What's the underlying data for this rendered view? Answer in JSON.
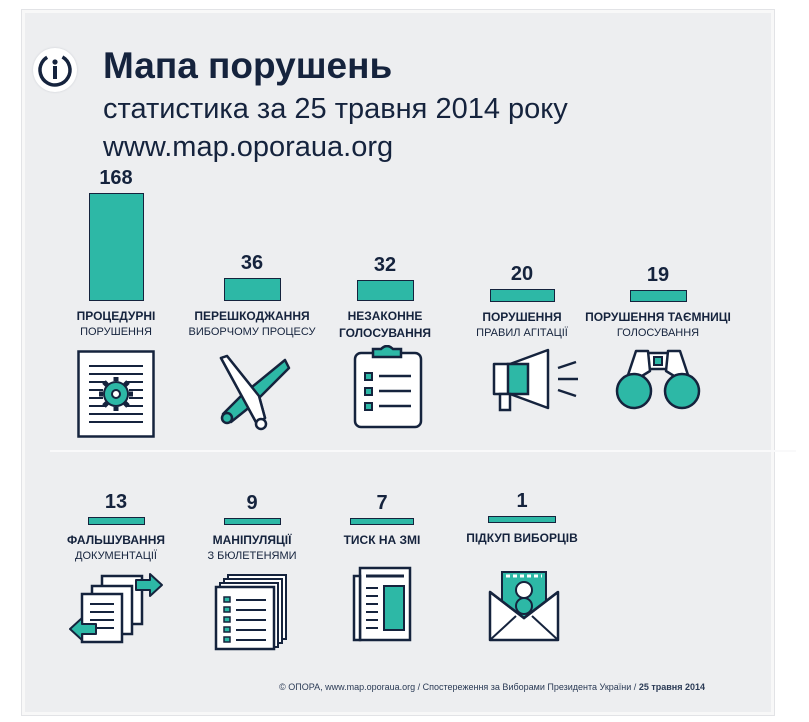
{
  "header": {
    "title": "Мапа порушень",
    "subtitle": "статистика за 25 травня 2014 року",
    "site": "www.map.oporaua.org"
  },
  "colors": {
    "accent": "#2db8a6",
    "dark": "#15233d",
    "background": "#edeef0"
  },
  "chart_data": {
    "type": "bar",
    "categories": [
      "ПРОЦЕДУРНІ ПОРУШЕННЯ",
      "ПЕРЕШКОДЖАННЯ ВИБОРЧОМУ ПРОЦЕСУ",
      "НЕЗАКОННЕ ГОЛОСУВАННЯ",
      "ПОРУШЕННЯ ПРАВИЛ АГІТАЦІЇ",
      "ПОРУШЕННЯ ТАЄМНИЦІ ГОЛОСУВАННЯ",
      "ФАЛЬШУВАННЯ ДОКУМЕНТАЦІЇ",
      "МАНІПУЛЯЦІЇ З БЮЛЕТЕНЯМИ",
      "ТИСК НА ЗМІ",
      "ПІДКУП ВИБОРЦІВ"
    ],
    "values": [
      168,
      36,
      32,
      20,
      19,
      13,
      9,
      7,
      1
    ],
    "labels": [
      {
        "line1": "ПРОЦЕДУРНІ",
        "line2": "ПОРУШЕННЯ"
      },
      {
        "line1": "ПЕРЕШКОДЖАННЯ",
        "line2": "ВИБОРЧОМУ ПРОЦЕСУ"
      },
      {
        "line1": "НЕЗАКОННЕ",
        "line2": "ГОЛОСУВАННЯ"
      },
      {
        "line1": "ПОРУШЕННЯ",
        "line2": "ПРАВИЛ АГІТАЦІЇ"
      },
      {
        "line1": "ПОРУШЕННЯ ТАЄМНИЦІ",
        "line2": "ГОЛОСУВАННЯ"
      },
      {
        "line1": "ФАЛЬШУВАННЯ",
        "line2": "ДОКУМЕНТАЦІЇ"
      },
      {
        "line1": "МАНІПУЛЯЦІЇ",
        "line2": "З БЮЛЕТЕНЯМИ"
      },
      {
        "line1": "ТИСК НА ЗМІ",
        "line2": ""
      },
      {
        "line1": "ПІДКУП ВИБОРЦІВ",
        "line2": ""
      }
    ],
    "icons": [
      "document-gear-icon",
      "crossed-bats-icon",
      "clipboard-checklist-icon",
      "megaphone-icon",
      "binoculars-icon",
      "document-exchange-icon",
      "ballot-stack-icon",
      "newspaper-icon",
      "money-envelope-icon"
    ],
    "grid": false,
    "legend": "none"
  },
  "footer": {
    "text": "© ОПОРА, www.map.oporaua.org / Спостереження за Виборами Президента України /",
    "date": "25 травня 2014"
  }
}
